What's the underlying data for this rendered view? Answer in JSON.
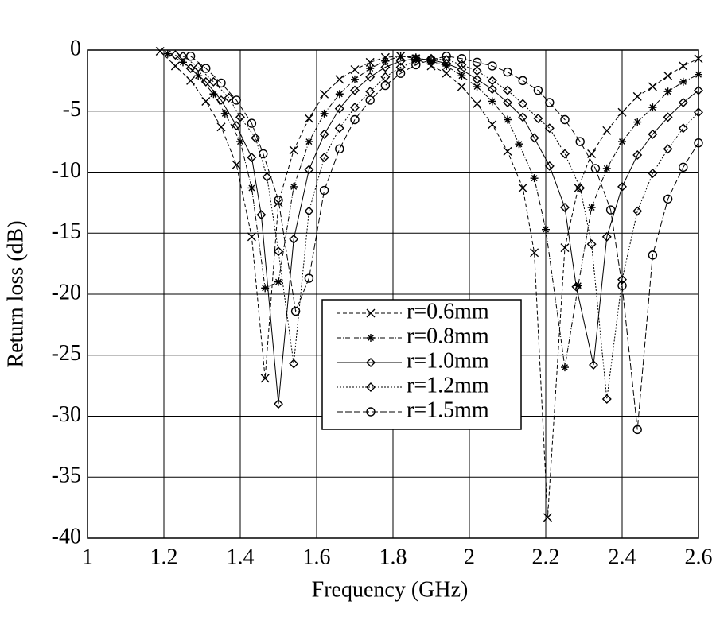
{
  "chart_data": {
    "type": "line",
    "x_label": "Frequency (GHz)",
    "y_label": "Return loss (dB)",
    "xlim": [
      1,
      2.6
    ],
    "xticks": [
      1,
      1.2,
      1.4,
      1.6,
      1.8,
      2,
      2.2,
      2.4,
      2.6
    ],
    "ylim": [
      -40,
      0
    ],
    "yticks": [
      0,
      -5,
      -10,
      -15,
      -20,
      -25,
      -30,
      -35,
      -40
    ],
    "grid": true,
    "legend": "center",
    "series": [
      {
        "name": "r=0.6mm",
        "color": "#000000",
        "marker": "x",
        "dash": "5,3",
        "x": [
          1.19,
          1.23,
          1.27,
          1.31,
          1.35,
          1.39,
          1.43,
          1.465,
          1.5,
          1.54,
          1.58,
          1.62,
          1.66,
          1.7,
          1.74,
          1.78,
          1.82,
          1.86,
          1.9,
          1.94,
          1.98,
          2.02,
          2.06,
          2.1,
          2.14,
          2.17,
          2.205,
          2.25,
          2.285,
          2.32,
          2.36,
          2.4,
          2.44,
          2.48,
          2.52,
          2.56,
          2.6
        ],
        "values": [
          -0.1,
          -1.3,
          -2.5,
          -4.2,
          -6.3,
          -9.4,
          -15.3,
          -26.9,
          -12.5,
          -8.2,
          -5.6,
          -3.6,
          -2.4,
          -1.6,
          -1.0,
          -0.6,
          -0.5,
          -0.7,
          -1.3,
          -1.9,
          -3.0,
          -4.4,
          -6.1,
          -8.3,
          -11.3,
          -16.6,
          -38.3,
          -16.2,
          -11.3,
          -8.5,
          -6.6,
          -5.1,
          -3.8,
          -3.0,
          -2.1,
          -1.3,
          -0.7
        ]
      },
      {
        "name": "r=0.8mm",
        "color": "#000000",
        "marker": "star",
        "dash": "6,2,1,2",
        "x": [
          1.21,
          1.25,
          1.29,
          1.33,
          1.36,
          1.4,
          1.43,
          1.465,
          1.5,
          1.54,
          1.58,
          1.62,
          1.66,
          1.7,
          1.74,
          1.78,
          1.82,
          1.86,
          1.9,
          1.94,
          1.98,
          2.02,
          2.06,
          2.1,
          2.13,
          2.17,
          2.2,
          2.25,
          2.285,
          2.32,
          2.36,
          2.4,
          2.44,
          2.48,
          2.52,
          2.56,
          2.6
        ],
        "values": [
          -0.3,
          -1.0,
          -2.1,
          -3.6,
          -5.2,
          -7.5,
          -11.3,
          -19.5,
          -19.0,
          -11.2,
          -7.5,
          -5.2,
          -3.6,
          -2.4,
          -1.5,
          -0.9,
          -0.5,
          -0.6,
          -0.9,
          -1.3,
          -2.1,
          -3.0,
          -4.2,
          -5.7,
          -7.7,
          -10.5,
          -14.7,
          -26.0,
          -19.3,
          -12.9,
          -9.7,
          -7.5,
          -5.9,
          -4.7,
          -3.4,
          -2.6,
          -2.0
        ]
      },
      {
        "name": "r=1.0mm",
        "color": "#000000",
        "marker": "diamond",
        "dash": "",
        "x": [
          1.23,
          1.27,
          1.31,
          1.35,
          1.39,
          1.43,
          1.455,
          1.5,
          1.54,
          1.58,
          1.62,
          1.66,
          1.7,
          1.74,
          1.78,
          1.82,
          1.86,
          1.9,
          1.94,
          1.98,
          2.02,
          2.06,
          2.1,
          2.14,
          2.17,
          2.21,
          2.25,
          2.28,
          2.325,
          2.36,
          2.4,
          2.44,
          2.48,
          2.52,
          2.56,
          2.6
        ],
        "values": [
          -0.4,
          -1.5,
          -2.6,
          -4.1,
          -6.2,
          -8.8,
          -13.5,
          -29.0,
          -15.5,
          -9.8,
          -6.9,
          -4.8,
          -3.3,
          -2.2,
          -1.4,
          -0.9,
          -0.7,
          -0.8,
          -1.1,
          -1.6,
          -2.4,
          -3.2,
          -4.3,
          -5.5,
          -7.2,
          -9.5,
          -12.9,
          -19.4,
          -25.8,
          -15.3,
          -11.2,
          -8.6,
          -6.9,
          -5.5,
          -4.3,
          -3.3
        ]
      },
      {
        "name": "r=1.2mm",
        "color": "#000000",
        "marker": "diamond",
        "dash": "2,2",
        "x": [
          1.25,
          1.29,
          1.33,
          1.37,
          1.4,
          1.44,
          1.47,
          1.5,
          1.54,
          1.58,
          1.62,
          1.66,
          1.7,
          1.74,
          1.78,
          1.82,
          1.86,
          1.9,
          1.94,
          1.98,
          2.02,
          2.06,
          2.1,
          2.14,
          2.18,
          2.21,
          2.25,
          2.29,
          2.32,
          2.36,
          2.4,
          2.44,
          2.48,
          2.52,
          2.56,
          2.6
        ],
        "values": [
          -0.5,
          -1.4,
          -2.6,
          -3.9,
          -5.5,
          -7.2,
          -10.4,
          -16.5,
          -25.7,
          -13.2,
          -8.8,
          -6.4,
          -4.7,
          -3.4,
          -2.2,
          -1.4,
          -0.9,
          -0.7,
          -0.8,
          -1.2,
          -1.7,
          -2.5,
          -3.3,
          -4.4,
          -5.6,
          -6.4,
          -8.5,
          -11.3,
          -15.9,
          -28.6,
          -18.8,
          -13.2,
          -10.1,
          -8.1,
          -6.4,
          -5.1
        ]
      },
      {
        "name": "r=1.5mm",
        "color": "#000000",
        "marker": "circle",
        "dash": "8,3",
        "x": [
          1.27,
          1.31,
          1.35,
          1.39,
          1.43,
          1.46,
          1.5,
          1.545,
          1.58,
          1.62,
          1.66,
          1.7,
          1.74,
          1.78,
          1.82,
          1.86,
          1.9,
          1.94,
          1.98,
          2.02,
          2.06,
          2.1,
          2.14,
          2.18,
          2.21,
          2.25,
          2.29,
          2.33,
          2.37,
          2.4,
          2.44,
          2.48,
          2.52,
          2.56,
          2.6
        ],
        "values": [
          -0.5,
          -1.5,
          -2.7,
          -4.1,
          -6.0,
          -8.5,
          -12.3,
          -21.4,
          -18.7,
          -11.5,
          -8.1,
          -5.7,
          -4.1,
          -2.9,
          -1.9,
          -1.2,
          -0.8,
          -0.5,
          -0.7,
          -1.0,
          -1.3,
          -1.8,
          -2.5,
          -3.3,
          -4.3,
          -5.7,
          -7.5,
          -9.7,
          -13.1,
          -19.3,
          -31.1,
          -16.8,
          -12.2,
          -9.6,
          -7.6
        ]
      }
    ]
  }
}
